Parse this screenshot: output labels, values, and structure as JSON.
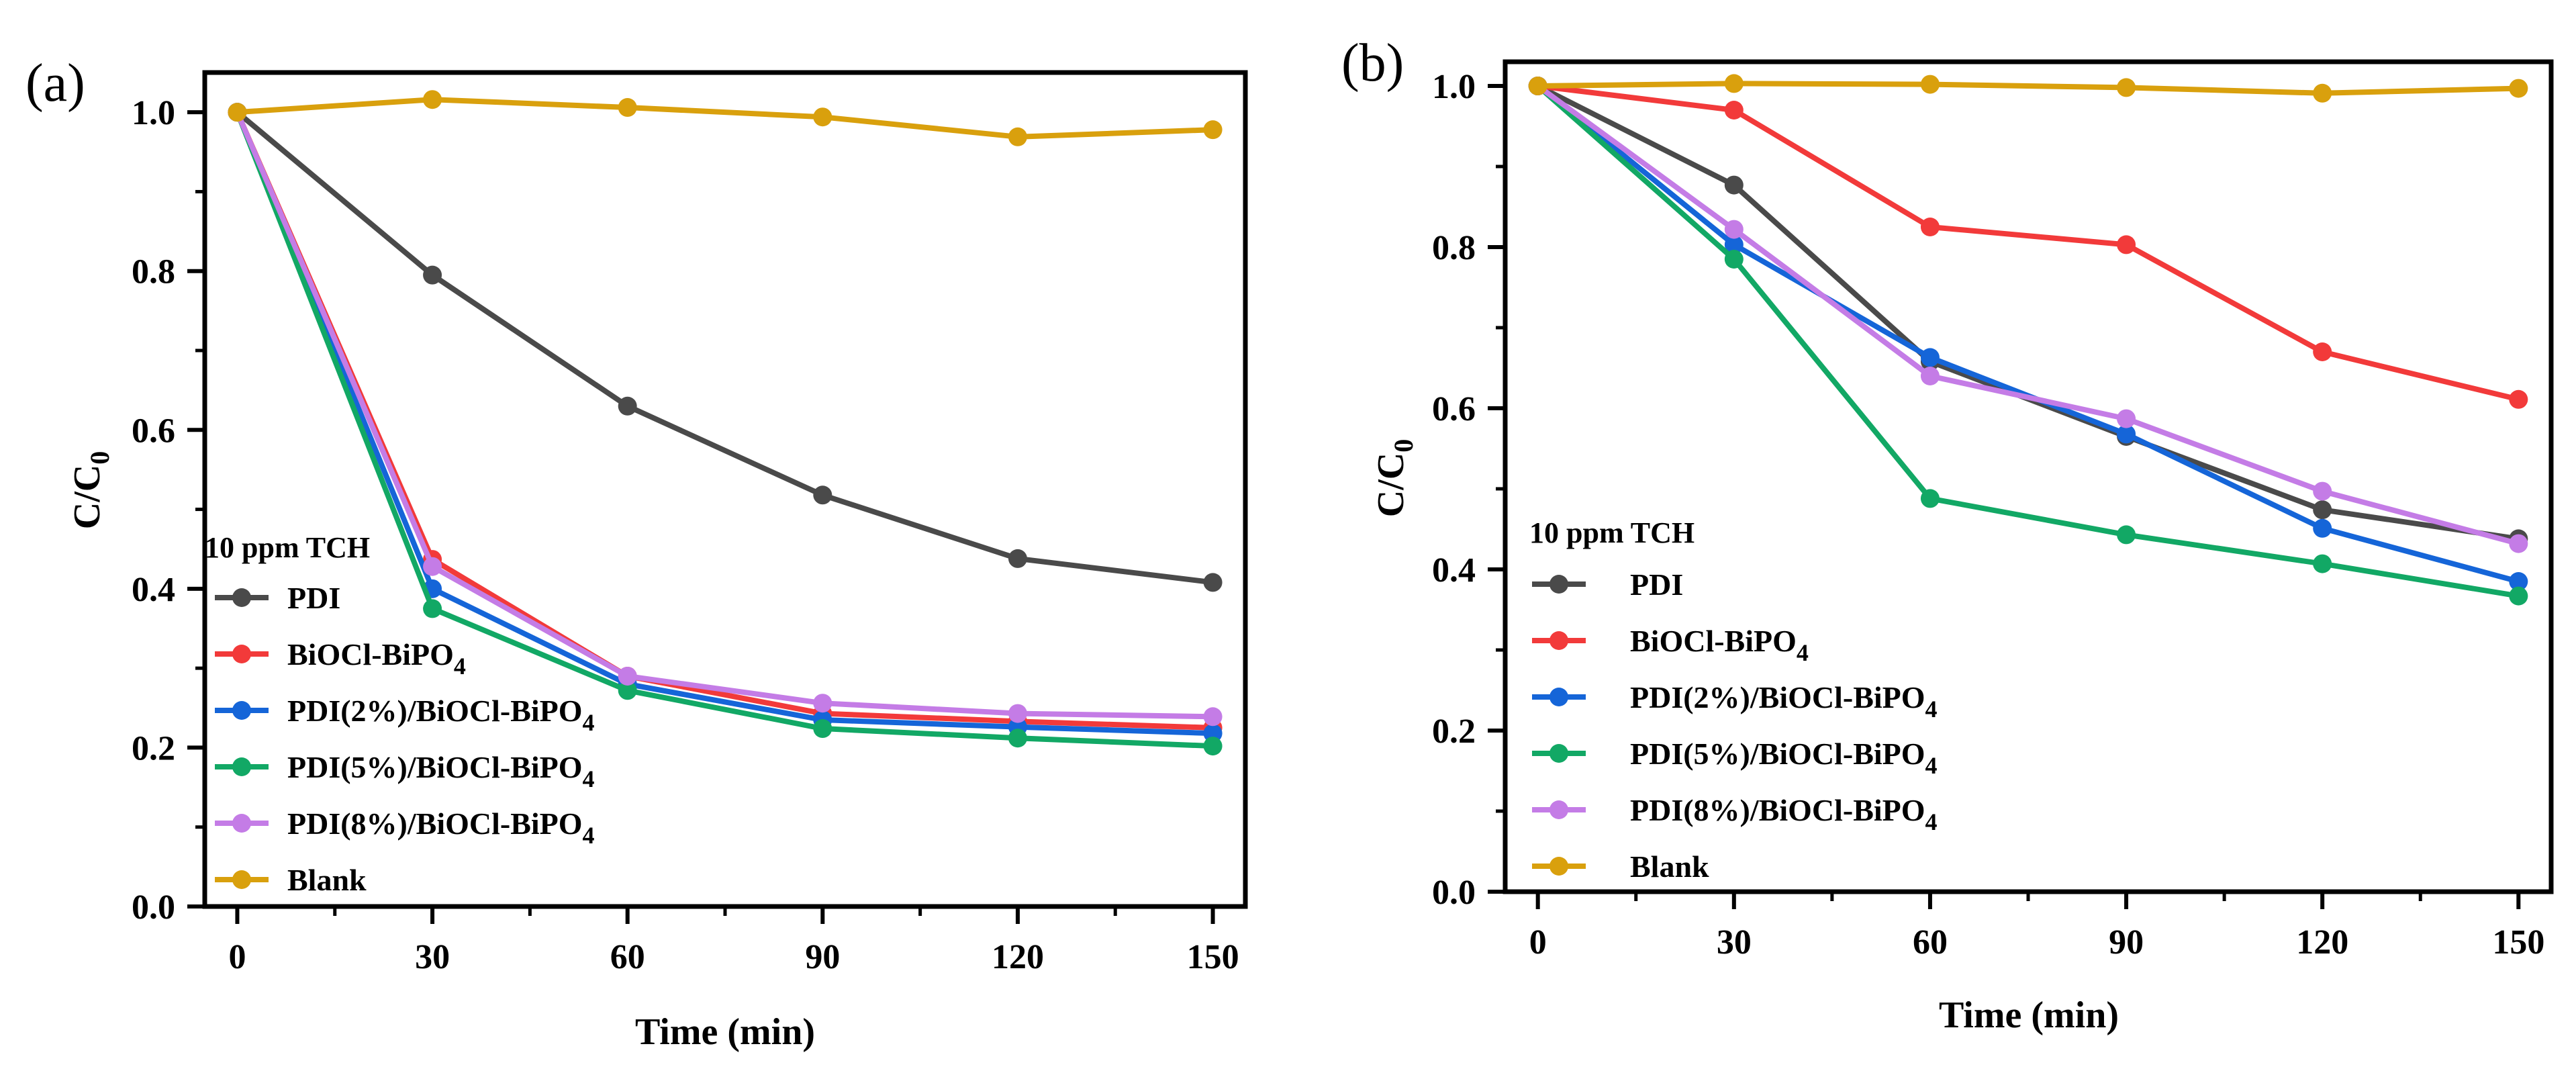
{
  "chart_data": [
    {
      "type": "line",
      "panel_label": "(a)",
      "xlabel": "Time (min)",
      "ylabel_main": "C/C",
      "ylabel_sub": "0",
      "x": [
        0,
        30,
        60,
        90,
        120,
        150
      ],
      "x_ticks": [
        "0",
        "30",
        "60",
        "90",
        "120",
        "150"
      ],
      "y_ticks": [
        "0.0",
        "0.2",
        "0.4",
        "0.6",
        "0.8",
        "1.0"
      ],
      "xlim": [
        -5,
        155
      ],
      "ylim": [
        0,
        1.05
      ],
      "legend_title": "10 ppm TCH",
      "legend_position": "lower-left",
      "series": [
        {
          "name": "PDI",
          "sub": "",
          "color": "#4a4a4a",
          "values": [
            1.0,
            0.795,
            0.63,
            0.518,
            0.438,
            0.408
          ]
        },
        {
          "name": "BiOCl-BiPO",
          "sub": "4",
          "color": "#f23a3a",
          "values": [
            1.0,
            0.437,
            0.29,
            0.243,
            0.233,
            0.225
          ]
        },
        {
          "name": "PDI(2%)/BiOCl-BiPO",
          "sub": "4",
          "color": "#1565d8",
          "values": [
            1.0,
            0.4,
            0.28,
            0.235,
            0.226,
            0.218
          ]
        },
        {
          "name": "PDI(5%)/BiOCl-BiPO",
          "sub": "4",
          "color": "#12a865",
          "values": [
            1.0,
            0.375,
            0.272,
            0.224,
            0.212,
            0.202
          ]
        },
        {
          "name": "PDI(8%)/BiOCl-BiPO",
          "sub": "4",
          "color": "#c47ce6",
          "values": [
            1.0,
            0.428,
            0.29,
            0.256,
            0.243,
            0.239
          ]
        },
        {
          "name": "Blank",
          "sub": "",
          "color": "#d9a00d",
          "values": [
            1.0,
            1.016,
            1.006,
            0.994,
            0.969,
            0.978
          ]
        }
      ]
    },
    {
      "type": "line",
      "panel_label": "(b)",
      "xlabel": "Time (min)",
      "ylabel_main": "C/C",
      "ylabel_sub": "0",
      "x": [
        0,
        30,
        60,
        90,
        120,
        150
      ],
      "x_ticks": [
        "0",
        "30",
        "60",
        "90",
        "120",
        "150"
      ],
      "y_ticks": [
        "0.0",
        "0.2",
        "0.4",
        "0.6",
        "0.8",
        "1.0"
      ],
      "xlim": [
        -5,
        155
      ],
      "ylim": [
        0,
        1.03
      ],
      "legend_title": "10 ppm TCH",
      "legend_position": "lower-left",
      "series": [
        {
          "name": "PDI",
          "sub": "",
          "color": "#4a4a4a",
          "values": [
            1.0,
            0.877,
            0.658,
            0.565,
            0.474,
            0.438
          ]
        },
        {
          "name": "BiOCl-BiPO",
          "sub": "4",
          "color": "#f23a3a",
          "values": [
            1.0,
            0.97,
            0.825,
            0.803,
            0.67,
            0.611
          ]
        },
        {
          "name": "PDI(2%)/BiOCl-BiPO",
          "sub": "4",
          "color": "#1565d8",
          "values": [
            1.0,
            0.803,
            0.663,
            0.568,
            0.451,
            0.385
          ]
        },
        {
          "name": "PDI(5%)/BiOCl-BiPO",
          "sub": "4",
          "color": "#12a865",
          "values": [
            1.0,
            0.785,
            0.488,
            0.443,
            0.407,
            0.367
          ]
        },
        {
          "name": "PDI(8%)/BiOCl-BiPO",
          "sub": "4",
          "color": "#c47ce6",
          "values": [
            1.0,
            0.822,
            0.64,
            0.587,
            0.497,
            0.432
          ]
        },
        {
          "name": "Blank",
          "sub": "",
          "color": "#d9a00d",
          "values": [
            1.0,
            1.003,
            1.002,
            0.998,
            0.991,
            0.997
          ]
        }
      ]
    }
  ]
}
